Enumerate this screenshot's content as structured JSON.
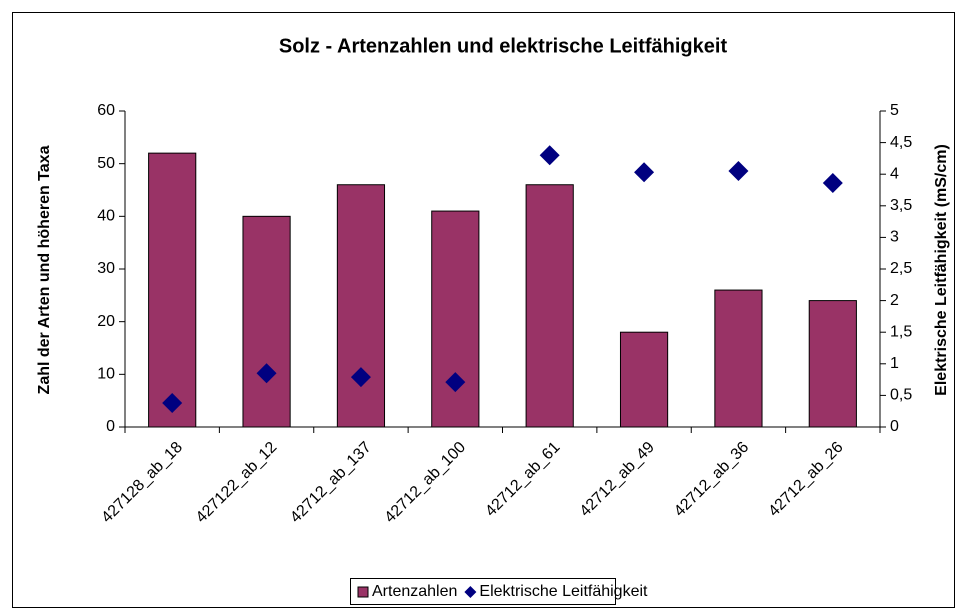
{
  "chart_data": {
    "type": "bar",
    "title": "Solz - Artenzahlen und elektrische Leitfähigkeit",
    "y_label": "Zahl der Arten und höheren Taxa",
    "y2_label": "Elektrische Leitfähigkeit (mS/cm)",
    "categories": [
      "427128_ab_18",
      "427122_ab_12",
      "42712_ab_137",
      "42712_ab_100",
      "42712_ab_61",
      "42712_ab_49",
      "42712_ab_36",
      "42712_ab_26"
    ],
    "series": [
      {
        "name": "Artenzahlen",
        "type": "bar",
        "axis": "y",
        "color": "#993366",
        "values": [
          52,
          40,
          46,
          41,
          46,
          18,
          26,
          24
        ]
      },
      {
        "name": "Elektrische Leitfähigkeit",
        "type": "scatter",
        "axis": "y2",
        "color": "#000080",
        "values": [
          0.38,
          0.85,
          0.79,
          0.71,
          4.3,
          4.03,
          4.05,
          3.86
        ]
      }
    ],
    "ylim": [
      0,
      60
    ],
    "yticks": [
      0,
      10,
      20,
      30,
      40,
      50,
      60
    ],
    "y2lim": [
      0,
      5
    ],
    "y2ticks": [
      0,
      {
        "value": 0.5,
        "label": "0,5"
      },
      1,
      {
        "value": 1.5,
        "label": "1,5"
      },
      2,
      {
        "value": 2.5,
        "label": "2,5"
      },
      3,
      {
        "value": 3.5,
        "label": "3,5"
      },
      4,
      {
        "value": 4.5,
        "label": "4,5"
      },
      5
    ],
    "grid": false,
    "legend": "bottom"
  }
}
